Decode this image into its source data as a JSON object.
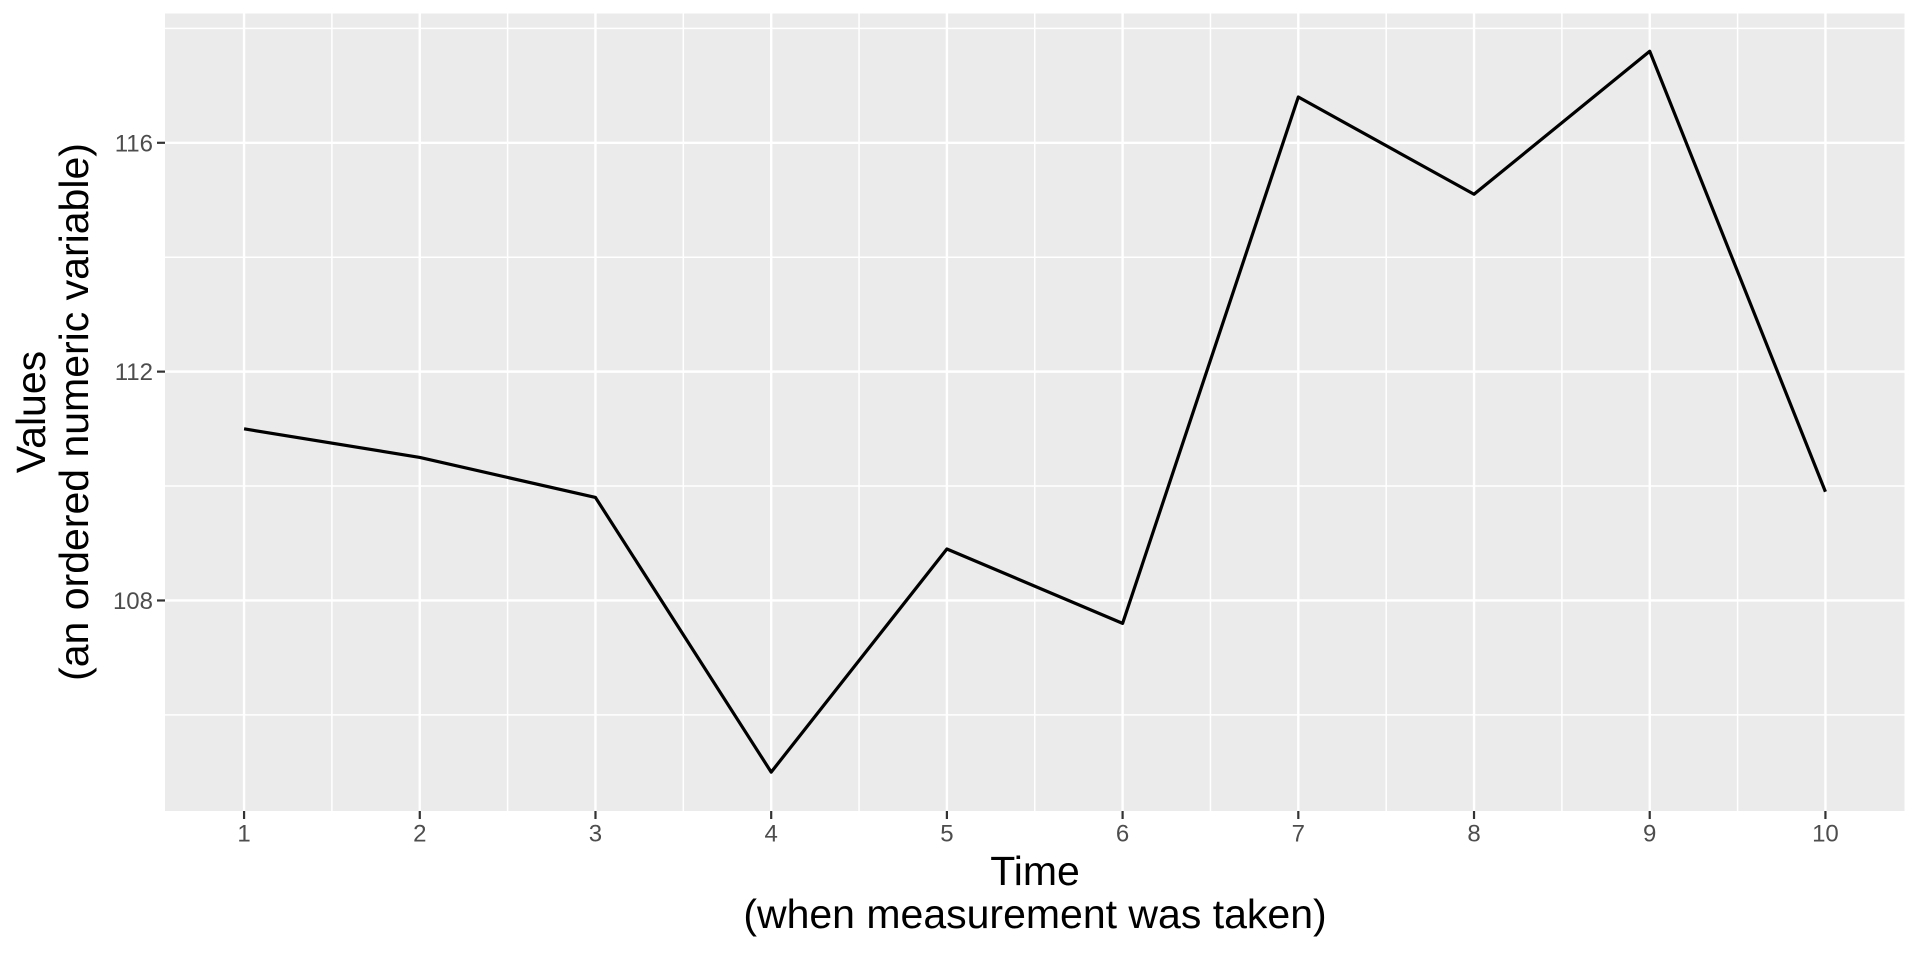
{
  "figure": {
    "background": "#FFFFFF",
    "panel_background": "#EBEBEB",
    "grid_color": "#FFFFFF",
    "line_color": "#000000",
    "tick_label_color": "#4D4D4D",
    "axis_title_color": "#000000",
    "tick_mark_color": "#333333"
  },
  "chart_data": {
    "type": "line",
    "style": "ggplot2",
    "title": "",
    "x": [
      1,
      2,
      3,
      4,
      5,
      6,
      7,
      8,
      9,
      10
    ],
    "y": [
      111,
      110.5,
      109.8,
      105,
      108.9,
      107.6,
      116.8,
      115.1,
      117.6,
      109.9
    ],
    "xlabel_lines": [
      "Time",
      "(when measurement was taken)"
    ],
    "ylabel_lines": [
      "Values",
      "(an ordered numeric variable)"
    ],
    "x_ticks": [
      1,
      2,
      3,
      4,
      5,
      6,
      7,
      8,
      9,
      10
    ],
    "x_tick_labels": [
      "1",
      "2",
      "3",
      "4",
      "5",
      "6",
      "7",
      "8",
      "9",
      "10"
    ],
    "y_ticks": [
      108,
      112,
      116
    ],
    "y_tick_labels": [
      "108",
      "112",
      "116"
    ],
    "x_minor_ticks": [
      1.5,
      2.5,
      3.5,
      4.5,
      5.5,
      6.5,
      7.5,
      8.5,
      9.5
    ],
    "y_minor_ticks": [
      106,
      110,
      114,
      118
    ],
    "xlim": [
      0.55,
      10.45
    ],
    "ylim": [
      104.32,
      118.26
    ],
    "grid": true,
    "legend": "none",
    "markers": false
  }
}
